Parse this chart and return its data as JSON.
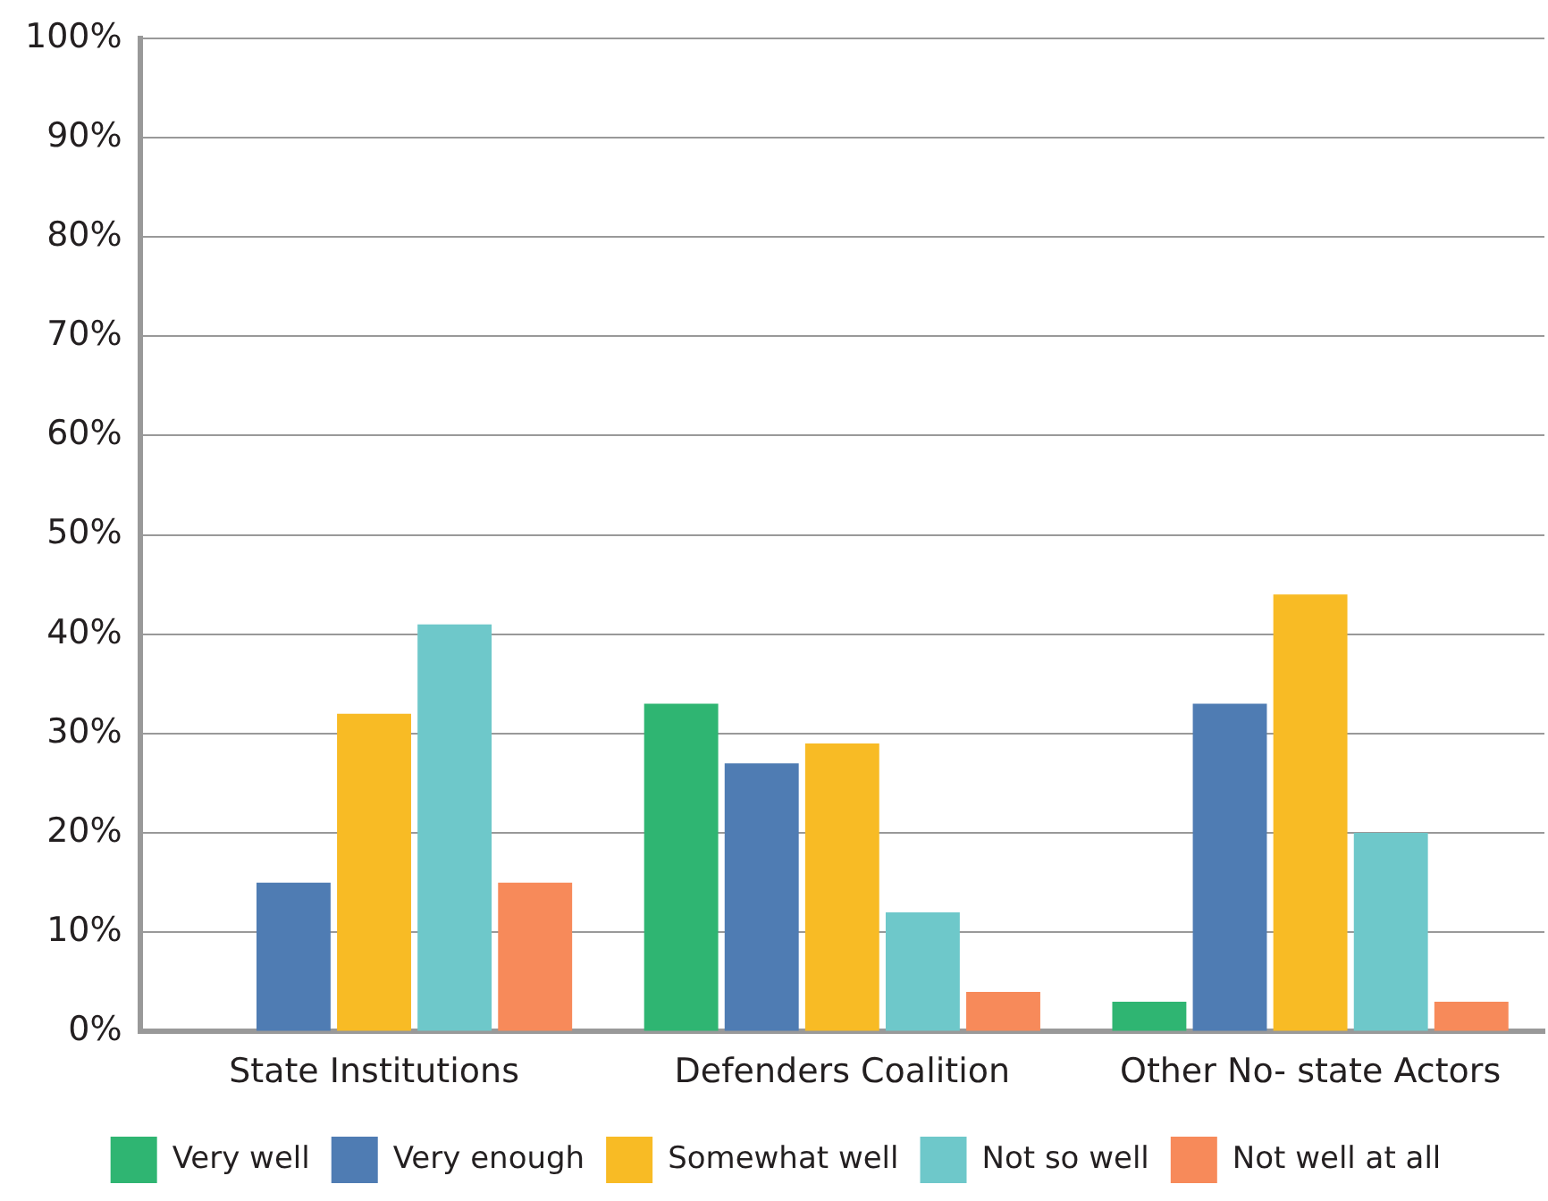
{
  "chart_data": {
    "type": "bar",
    "categories": [
      "State Institutions",
      "Defenders Coalition",
      "Other No- state Actors"
    ],
    "series": [
      {
        "name": "Very well",
        "color": "#2fb572",
        "values": [
          0,
          33,
          3
        ]
      },
      {
        "name": "Very enough",
        "color": "#4f7cb3",
        "values": [
          15,
          27,
          33
        ]
      },
      {
        "name": "Somewhat well",
        "color": "#f8bb25",
        "values": [
          32,
          29,
          44
        ]
      },
      {
        "name": "Not so well",
        "color": "#6ec8ca",
        "values": [
          41,
          12,
          20
        ]
      },
      {
        "name": "Not well at all",
        "color": "#f78a5a",
        "values": [
          15,
          4,
          3
        ]
      }
    ],
    "ylim": [
      0,
      100
    ],
    "yticks": [
      {
        "value": 0,
        "label": "0%"
      },
      {
        "value": 10,
        "label": "10%"
      },
      {
        "value": 20,
        "label": "20%"
      },
      {
        "value": 30,
        "label": "30%"
      },
      {
        "value": 40,
        "label": "40%"
      },
      {
        "value": 50,
        "label": "50%"
      },
      {
        "value": 60,
        "label": "60%"
      },
      {
        "value": 70,
        "label": "70%"
      },
      {
        "value": 80,
        "label": "80%"
      },
      {
        "value": 90,
        "label": "90%"
      },
      {
        "value": 100,
        "label": "100%"
      }
    ],
    "grid": "y",
    "legend": "bottom"
  }
}
